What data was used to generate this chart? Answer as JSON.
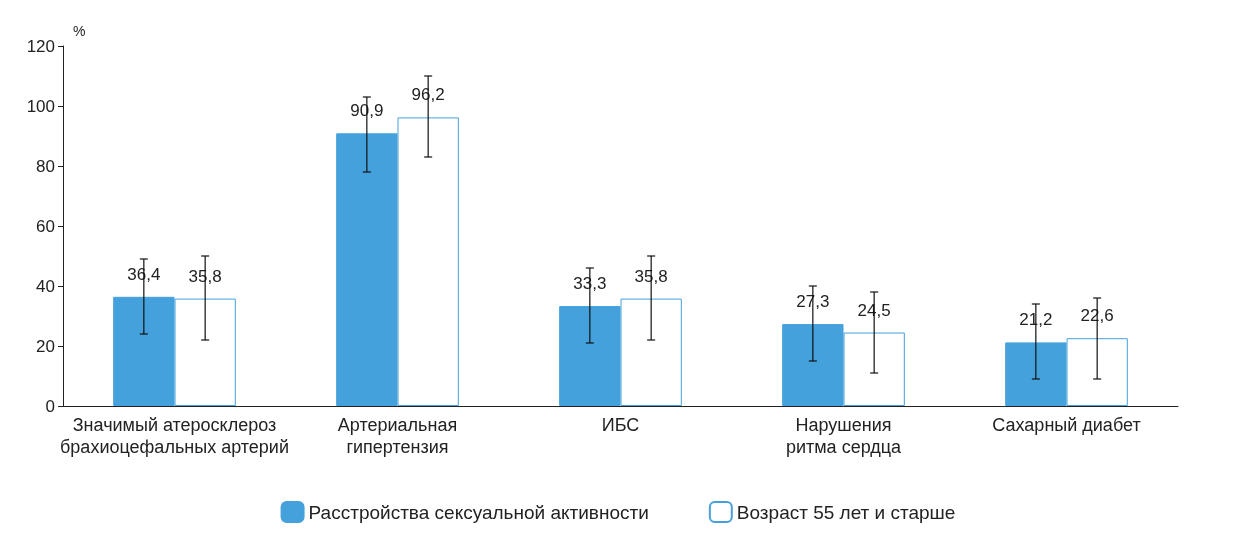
{
  "chart_data": {
    "type": "bar",
    "ylabel": "%",
    "categories": [
      "Значимый атеросклероз\nбрахиоцефальных артерий",
      "Артериальная\nгипертензия",
      "ИБС",
      "Нарушения\nритма сердца",
      "Сахарный диабет"
    ],
    "series": [
      {
        "name": "Расстройства сексуальной активности",
        "color": "#45a1dc",
        "values": [
          36.4,
          90.9,
          33.3,
          27.3,
          21.2
        ],
        "value_labels": [
          "36,4",
          "90,9",
          "33,3",
          "27,3",
          "21,2"
        ],
        "errors": [
          [
            24,
            49
          ],
          [
            78,
            103
          ],
          [
            21,
            46
          ],
          [
            15,
            40
          ],
          [
            9,
            34
          ]
        ]
      },
      {
        "name": "Возраст 55 лет и старше",
        "color": "#ffffff",
        "values": [
          35.8,
          96.2,
          35.8,
          24.5,
          22.6
        ],
        "value_labels": [
          "35,8",
          "96,2",
          "35,8",
          "24,5",
          "22,6"
        ],
        "errors": [
          [
            22,
            50
          ],
          [
            83,
            110
          ],
          [
            22,
            50
          ],
          [
            11,
            38
          ],
          [
            9,
            36
          ]
        ]
      }
    ],
    "ylim": [
      0,
      120
    ],
    "yticks": [
      0,
      20,
      40,
      60,
      80,
      100,
      120
    ],
    "grid": false,
    "legend": "bottom"
  }
}
